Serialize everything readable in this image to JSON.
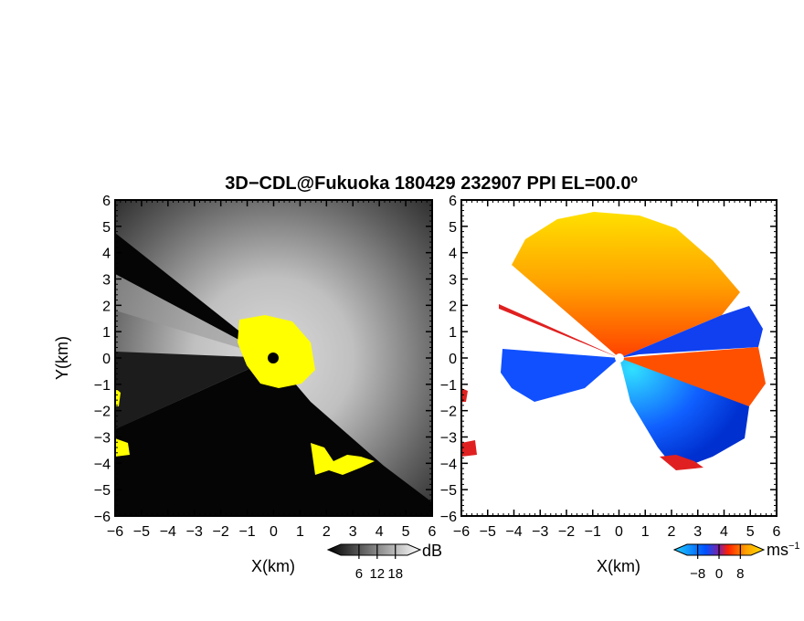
{
  "title": "3D−CDL@Fukuoka 180429 232907 PPI EL=00.0º",
  "chart_data": [
    {
      "type": "heatmap",
      "name": "reflectivity-panel",
      "xlabel": "X(km)",
      "ylabel": "Y(km)",
      "xlim": [
        -6,
        6
      ],
      "ylim": [
        -6,
        6
      ],
      "xticks": [
        "−6",
        "−5",
        "−4",
        "−3",
        "−2",
        "−1",
        "0",
        "1",
        "2",
        "3",
        "4",
        "5",
        "6"
      ],
      "yticks": [
        "−6",
        "−5",
        "−4",
        "−3",
        "−2",
        "−1",
        "0",
        "1",
        "2",
        "3",
        "4",
        "5",
        "6"
      ],
      "colorbar": {
        "unit": "dB",
        "ticks": [
          "6",
          "12",
          "18"
        ],
        "tick_values": [
          6,
          12,
          18
        ],
        "range": [
          0,
          22
        ],
        "colors": [
          "#000000",
          "#ffffff"
        ]
      },
      "highlight_color": "#ffff00"
    },
    {
      "type": "heatmap",
      "name": "doppler-velocity-panel",
      "xlabel": "X(km)",
      "ylabel": "",
      "xlim": [
        -6,
        6
      ],
      "ylim": [
        -6,
        6
      ],
      "xticks": [
        "−6",
        "−5",
        "−4",
        "−3",
        "−2",
        "−1",
        "0",
        "1",
        "2",
        "3",
        "4",
        "5",
        "6"
      ],
      "yticks": [
        "−6",
        "−5",
        "−4",
        "−3",
        "−2",
        "−1",
        "0",
        "1",
        "2",
        "3",
        "4",
        "5",
        "6"
      ],
      "colorbar": {
        "unit": "ms",
        "unit_exp": "−1",
        "ticks": [
          "−8",
          "0",
          "8"
        ],
        "tick_values": [
          -8,
          0,
          8
        ],
        "range": [
          -12,
          12
        ],
        "colors": [
          "#20d0ff",
          "#0050ff",
          "#ff2000",
          "#ffa000",
          "#ffe000"
        ]
      }
    }
  ]
}
